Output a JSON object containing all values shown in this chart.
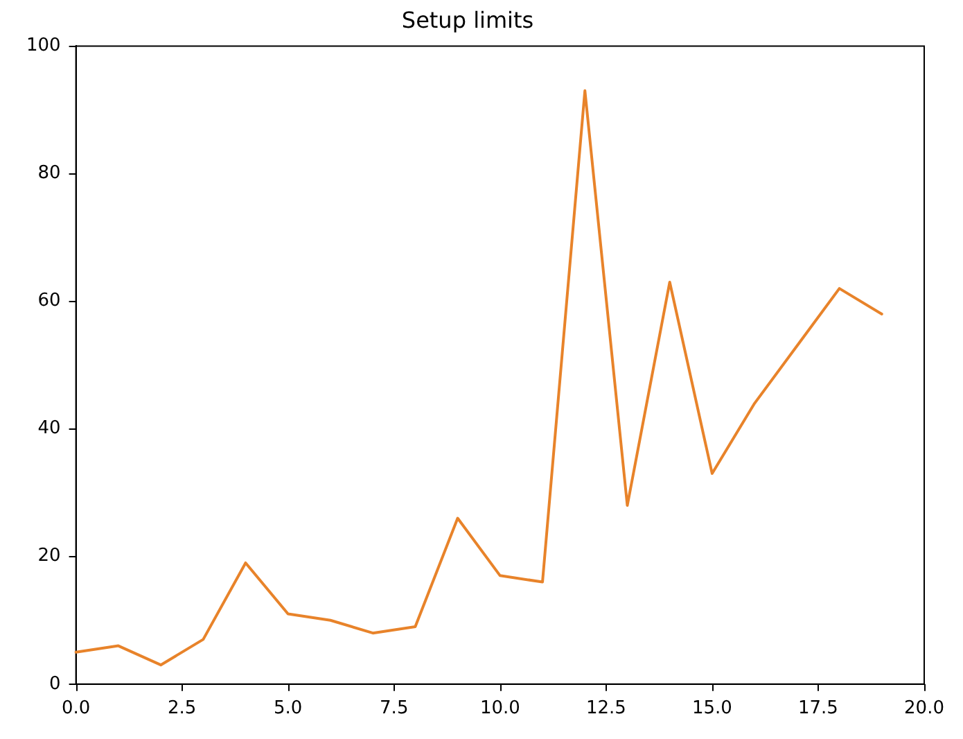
{
  "chart_data": {
    "type": "line",
    "title": "Setup limits",
    "x": [
      0,
      1,
      2,
      3,
      4,
      5,
      6,
      7,
      8,
      9,
      10,
      11,
      12,
      13,
      14,
      15,
      16,
      17,
      18,
      19
    ],
    "series": [
      {
        "color": "#e8832a",
        "values": [
          5,
          6,
          3,
          7,
          19,
          11,
          10,
          8,
          9,
          26,
          17,
          16,
          93,
          28,
          63,
          33,
          44,
          53,
          62,
          58
        ]
      }
    ],
    "xlim": [
      0,
      20
    ],
    "xticks": [
      {
        "value": 0,
        "label": "0.0"
      },
      {
        "value": 2.5,
        "label": "2.5"
      },
      {
        "value": 5,
        "label": "5.0"
      },
      {
        "value": 7.5,
        "label": "7.5"
      },
      {
        "value": 10,
        "label": "10.0"
      },
      {
        "value": 12.5,
        "label": "12.5"
      },
      {
        "value": 15,
        "label": "15.0"
      },
      {
        "value": 17.5,
        "label": "17.5"
      },
      {
        "value": 20,
        "label": "20.0"
      }
    ],
    "ylim": [
      0,
      100
    ],
    "yticks": [
      0,
      20,
      40,
      60,
      80,
      100
    ],
    "grid": false,
    "legend": false,
    "marker": "none",
    "line_style": "solid"
  }
}
